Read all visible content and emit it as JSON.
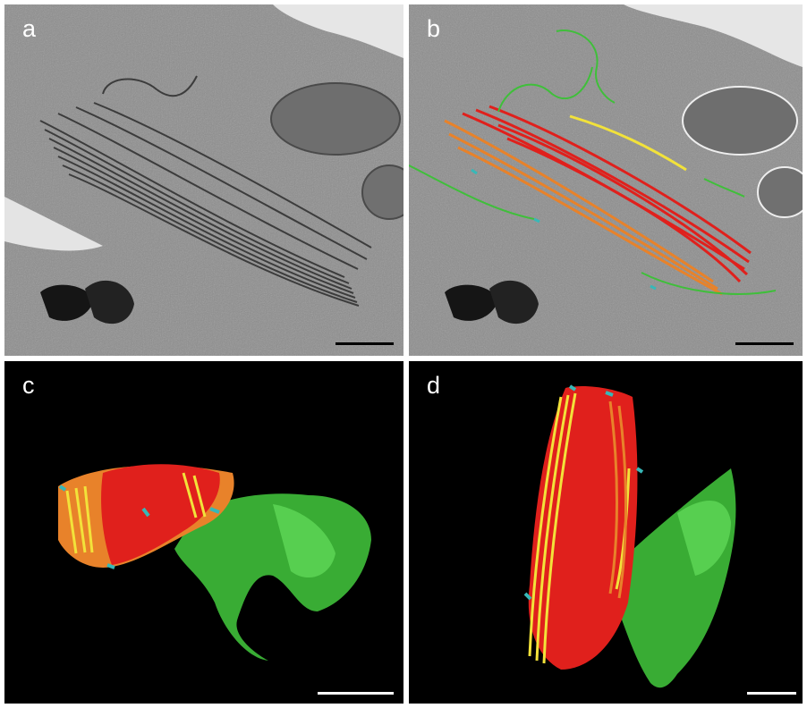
{
  "panels": [
    {
      "id": "a",
      "label": "a"
    },
    {
      "id": "b",
      "label": "b"
    },
    {
      "id": "c",
      "label": "c"
    },
    {
      "id": "d",
      "label": "d"
    }
  ],
  "colors": {
    "em_background": "#8a8a8a",
    "render_background": "#000000",
    "stack_red": "#e0201c",
    "stack_orange": "#e8822a",
    "stack_yellow": "#f2e23a",
    "cisternae_green": "#3fbf3a",
    "fenestration_cyan": "#37b8b8",
    "scalebar_em": "#000000",
    "scalebar_render": "#ffffff"
  }
}
